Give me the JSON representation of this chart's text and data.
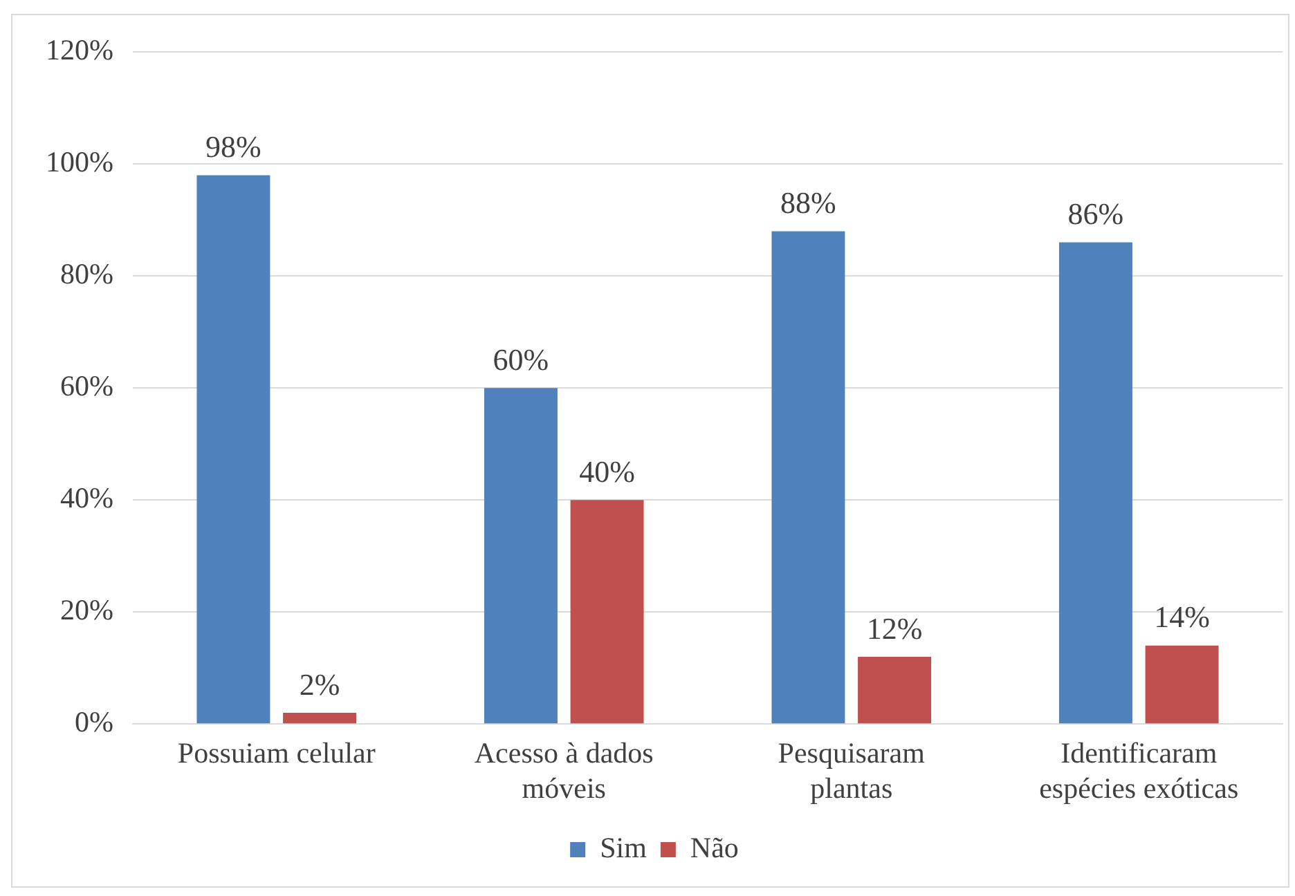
{
  "chart_data": {
    "type": "bar",
    "categories": [
      "Possuiam celular",
      "Acesso à dados móveis",
      "Pesquisaram plantas",
      "Identificaram espécies exóticas"
    ],
    "series": [
      {
        "name": "Sim",
        "color": "#4f81bd",
        "values": [
          98,
          60,
          88,
          86
        ],
        "value_labels": [
          "98%",
          "60%",
          "88%",
          "86%"
        ]
      },
      {
        "name": "Não",
        "color": "#c0504d",
        "values": [
          2,
          40,
          12,
          14
        ],
        "value_labels": [
          "2%",
          "40%",
          "12%",
          "14%"
        ]
      }
    ],
    "ylim": [
      0,
      120
    ],
    "yticks": [
      {
        "value": 0,
        "label": "0%"
      },
      {
        "value": 20,
        "label": "20%"
      },
      {
        "value": 40,
        "label": "40%"
      },
      {
        "value": 60,
        "label": "60%"
      },
      {
        "value": 80,
        "label": "80%"
      },
      {
        "value": 100,
        "label": "100%"
      },
      {
        "value": 120,
        "label": "120%"
      }
    ],
    "grid": "y",
    "legend": "bottom"
  }
}
